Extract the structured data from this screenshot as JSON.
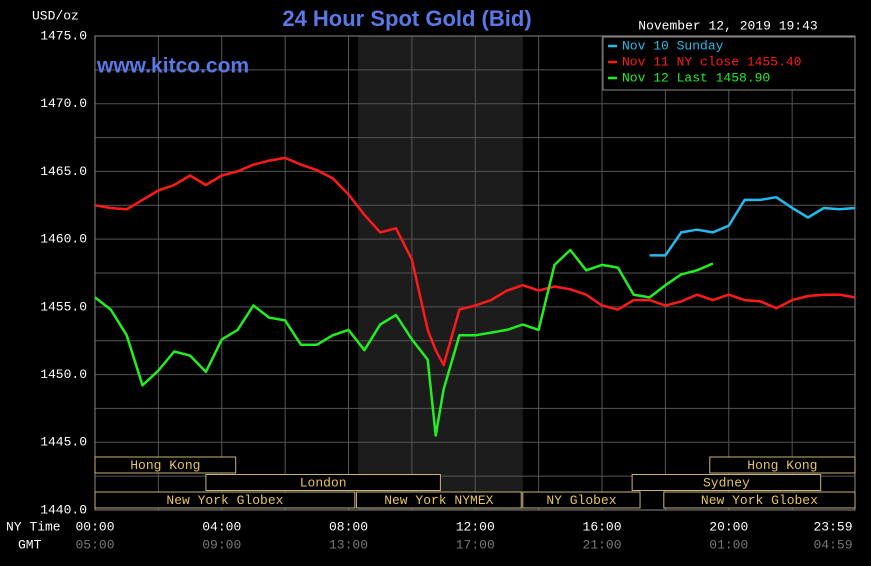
{
  "chart_data": {
    "type": "line",
    "title": "24 Hour Spot Gold (Bid)",
    "subtitle": "November 12, 2019 19:43",
    "annotation": "www.kitco.com",
    "y_label": "USD/oz",
    "x_label": "NY Time",
    "x2_label": "GMT",
    "xlim": [
      0,
      23.983
    ],
    "xticks": [
      {
        "value": 0,
        "label": "00:00"
      },
      {
        "value": 4,
        "label": "04:00"
      },
      {
        "value": 8,
        "label": "08:00"
      },
      {
        "value": 12,
        "label": "12:00"
      },
      {
        "value": 16,
        "label": "16:00"
      },
      {
        "value": 20,
        "label": "20:00"
      },
      {
        "value": 23.983,
        "label": "23:59"
      }
    ],
    "x2_labels": [
      "05:00",
      "09:00",
      "13:00",
      "17:00",
      "21:00",
      "01:00",
      "04:59"
    ],
    "x_minor_ticks": [
      2,
      6,
      10,
      14,
      18,
      22
    ],
    "ylim": [
      1440,
      1475
    ],
    "yticks": [
      {
        "value": 1440,
        "label": "1440.0"
      },
      {
        "value": 1445,
        "label": "1445.0"
      },
      {
        "value": 1450,
        "label": "1450.0"
      },
      {
        "value": 1455,
        "label": "1455.0"
      },
      {
        "value": 1460,
        "label": "1460.0"
      },
      {
        "value": 1465,
        "label": "1465.0"
      },
      {
        "value": 1470,
        "label": "1470.0"
      },
      {
        "value": 1475,
        "label": "1475.0"
      }
    ],
    "y_minor_ticks": [
      1442.5,
      1447.5,
      1452.5,
      1457.5,
      1462.5,
      1467.5,
      1472.5
    ],
    "grid": true,
    "shaded": [
      8.3,
      13.5
    ],
    "session_rows": [
      [
        {
          "label": "Hong Kong",
          "start": 0,
          "end": 4.44
        },
        {
          "label": "Hong Kong",
          "start": 19.4,
          "end": 23.983
        }
      ],
      [
        {
          "label": "London",
          "start": 3.5,
          "end": 10.9
        },
        {
          "label": "Sydney",
          "start": 16.95,
          "end": 22.9
        }
      ],
      [
        {
          "label": "New York Globex",
          "start": 0,
          "end": 8.2
        },
        {
          "label": "New York NYMEX",
          "start": 8.25,
          "end": 13.45
        },
        {
          "label": "NY Globex",
          "start": 13.5,
          "end": 17.2
        },
        {
          "label": "New York Globex",
          "start": 17.95,
          "end": 23.983
        }
      ]
    ],
    "legend": "upper right",
    "x": [
      0,
      0.5,
      1,
      1.5,
      2,
      2.5,
      3,
      3.5,
      4,
      4.5,
      5,
      5.5,
      6,
      6.5,
      7,
      7.5,
      8,
      8.5,
      9,
      9.5,
      10,
      10.5,
      10.75,
      11,
      11.5,
      12,
      12.5,
      13,
      13.5,
      14,
      14.5,
      15,
      15.5,
      16,
      16.5,
      17,
      17.5,
      18,
      18.5,
      19,
      19.5,
      20,
      20.5,
      21,
      21.5,
      22,
      22.5,
      23,
      23.5,
      23.98
    ],
    "series": [
      {
        "name": "Nov 10 Sunday",
        "color": "#22bbee",
        "values": [
          null,
          null,
          null,
          null,
          null,
          null,
          null,
          null,
          null,
          null,
          null,
          null,
          null,
          null,
          null,
          null,
          null,
          null,
          null,
          null,
          null,
          null,
          null,
          null,
          null,
          null,
          null,
          null,
          null,
          null,
          null,
          null,
          null,
          null,
          null,
          null,
          1458.8,
          1458.8,
          1460.5,
          1460.7,
          1460.5,
          1461,
          1462.9,
          1462.9,
          1463.1,
          1462.3,
          1461.6,
          1462.3,
          1462.2,
          1462.3
        ]
      },
      {
        "name": "Nov 11 NY close 1455.40",
        "color": "#ff1a1a",
        "values": [
          1462.5,
          1462.3,
          1462.2,
          1462.9,
          1463.6,
          1464.0,
          1464.7,
          1464.0,
          1464.7,
          1465.0,
          1465.5,
          1465.8,
          1466.0,
          1465.5,
          1465.1,
          1464.5,
          1463.3,
          1461.8,
          1460.5,
          1460.8,
          1458.5,
          1453.3,
          1451.8,
          1450.7,
          1454.8,
          1455.1,
          1455.5,
          1456.2,
          1456.6,
          1456.2,
          1456.5,
          1456.3,
          1455.9,
          1455.1,
          1454.8,
          1455.5,
          1455.5,
          1455.1,
          1455.4,
          1455.9,
          1455.5,
          1455.9,
          1455.5,
          1455.4,
          1454.9,
          1455.5,
          1455.8,
          1455.9,
          1455.9,
          1455.7
        ]
      },
      {
        "name": "Nov 12 Last 1458.90",
        "color": "#22ee22",
        "values": [
          1455.7,
          1454.8,
          1452.9,
          1449.2,
          1450.3,
          1451.7,
          1451.4,
          1450.2,
          1452.6,
          1453.3,
          1455.1,
          1454.2,
          1454.0,
          1452.2,
          1452.2,
          1452.9,
          1453.3,
          1451.8,
          1453.7,
          1454.4,
          1452.6,
          1451.1,
          1445.5,
          1448.9,
          1452.9,
          1452.9,
          1453.1,
          1453.3,
          1453.7,
          1453.3,
          1458.1,
          1459.2,
          1457.7,
          1458.1,
          1457.9,
          1455.9,
          1455.7,
          1456.6,
          1457.4,
          1457.7,
          1458.2,
          null,
          null,
          null,
          null,
          null,
          null,
          null,
          null,
          null
        ]
      }
    ]
  }
}
